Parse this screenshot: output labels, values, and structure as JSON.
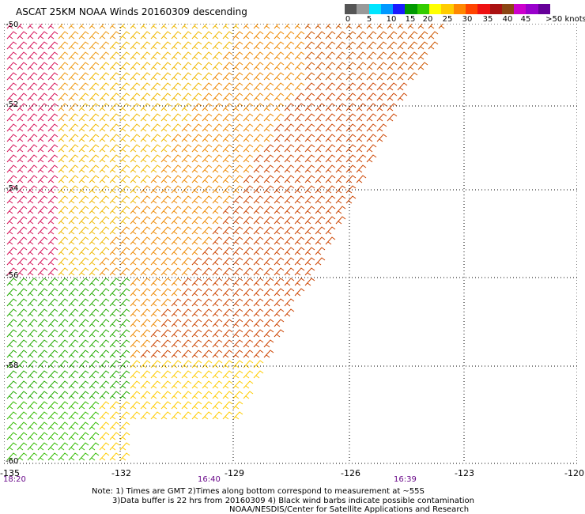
{
  "title": "ASCAT 25KM NOAA Winds 20160309 descending",
  "legend": {
    "colors": [
      "#555555",
      "#999999",
      "#00e5ff",
      "#0099ff",
      "#1a1aff",
      "#009900",
      "#33cc00",
      "#ffff00",
      "#ffcc00",
      "#ff8800",
      "#ff4400",
      "#ee1111",
      "#aa1111",
      "#8b4513",
      "#cc00cc",
      "#9900cc",
      "#660099"
    ],
    "tick_labels": [
      "0",
      "5",
      "10",
      "15",
      "20",
      "25",
      "30",
      "35",
      "40",
      "45",
      ">50 knots"
    ]
  },
  "map": {
    "lat_labels": [
      "-50",
      "-52",
      "-54",
      "-56",
      "-58",
      "-60"
    ],
    "lon_labels": [
      "-135",
      "-132",
      "-129",
      "-126",
      "-123",
      "-120"
    ],
    "time_labels": [
      "18:20",
      "16:40",
      "16:39"
    ]
  },
  "notes": [
    "Note: 1) Times are GMT 2)Times along bottom correspond to measurement at ~55S",
    "3)Data buffer is 22 hrs from 20160309 4) Black wind barbs indicate possible contamination",
    "NOAA/NESDIS/Center for Satellite Applications and Research"
  ]
}
